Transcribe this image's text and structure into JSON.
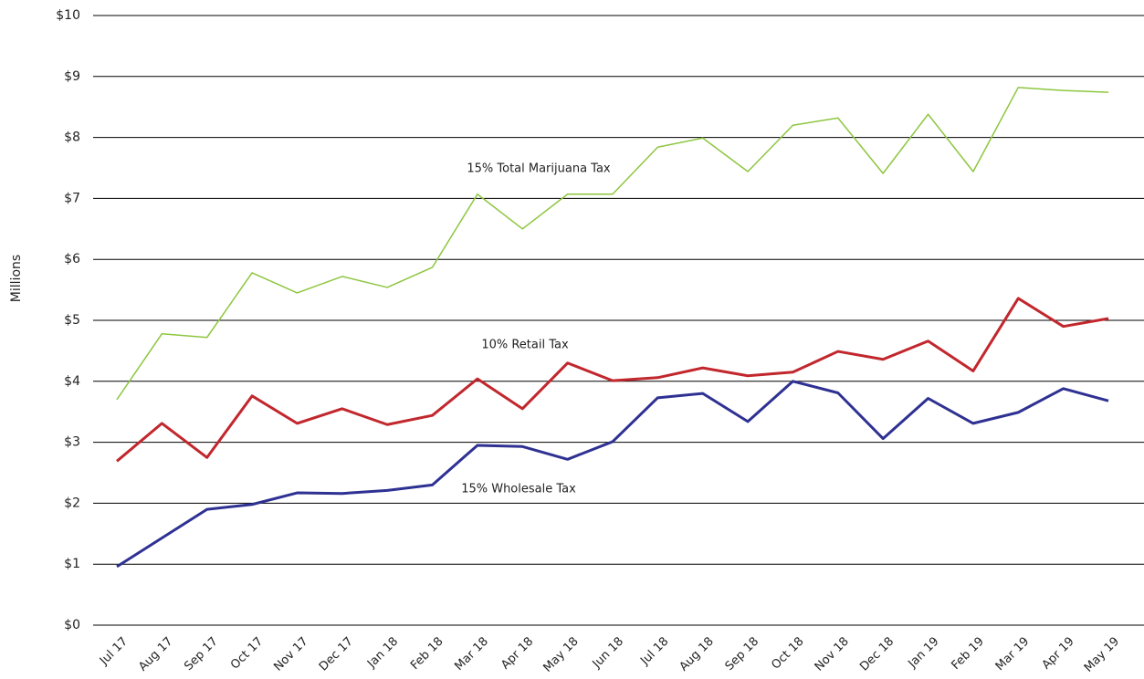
{
  "chart_data": {
    "type": "line",
    "y_label": "Millions",
    "categories": [
      "Jul 17",
      "Aug 17",
      "Sep 17",
      "Oct 17",
      "Nov 17",
      "Dec 17",
      "Jan 18",
      "Feb 18",
      "Mar 18",
      "Apr 18",
      "May 18",
      "Jun 18",
      "Jul 18",
      "Aug 18",
      "Sep 18",
      "Oct 18",
      "Nov 18",
      "Dec 18",
      "Jan 19",
      "Feb 19",
      "Mar 19",
      "Apr 19",
      "May 19"
    ],
    "series": [
      {
        "name": "15% Total Marijuana Tax",
        "color": "#8dc63f",
        "width": 1.5,
        "values": [
          3.7,
          4.78,
          4.72,
          5.78,
          5.45,
          5.72,
          5.54,
          5.87,
          7.07,
          6.5,
          7.07,
          7.07,
          7.84,
          7.99,
          7.44,
          8.2,
          8.32,
          7.41,
          8.38,
          7.44,
          8.82,
          8.77,
          8.74
        ]
      },
      {
        "name": "10% Retail Tax",
        "color": "#c1272d",
        "width": 3,
        "values": [
          2.69,
          3.31,
          2.75,
          3.76,
          3.31,
          3.55,
          3.29,
          3.44,
          4.04,
          3.55,
          4.3,
          4.01,
          4.06,
          4.22,
          4.09,
          4.15,
          4.49,
          4.36,
          4.66,
          4.17,
          5.36,
          4.9,
          5.03
        ]
      },
      {
        "name": "15% Wholesale Tax",
        "color": "#2e3192",
        "width": 3,
        "values": [
          0.96,
          1.43,
          1.9,
          1.98,
          2.17,
          2.16,
          2.21,
          2.3,
          2.95,
          2.93,
          2.72,
          3.01,
          3.73,
          3.8,
          3.34,
          4.0,
          3.81,
          3.06,
          3.72,
          3.31,
          3.49,
          3.88,
          3.68
        ]
      }
    ],
    "ylim": [
      0,
      10
    ],
    "yticks": [
      {
        "value": 0,
        "label": "$0"
      },
      {
        "value": 1,
        "label": "$1"
      },
      {
        "value": 2,
        "label": "$2"
      },
      {
        "value": 3,
        "label": "$3"
      },
      {
        "value": 4,
        "label": "$4"
      },
      {
        "value": 5,
        "label": "$5"
      },
      {
        "value": 6,
        "label": "$6"
      },
      {
        "value": 7,
        "label": "$7"
      },
      {
        "value": 8,
        "label": "$8"
      },
      {
        "value": 9,
        "label": "$9"
      },
      {
        "value": 10,
        "label": "$10"
      }
    ],
    "grid": true
  }
}
